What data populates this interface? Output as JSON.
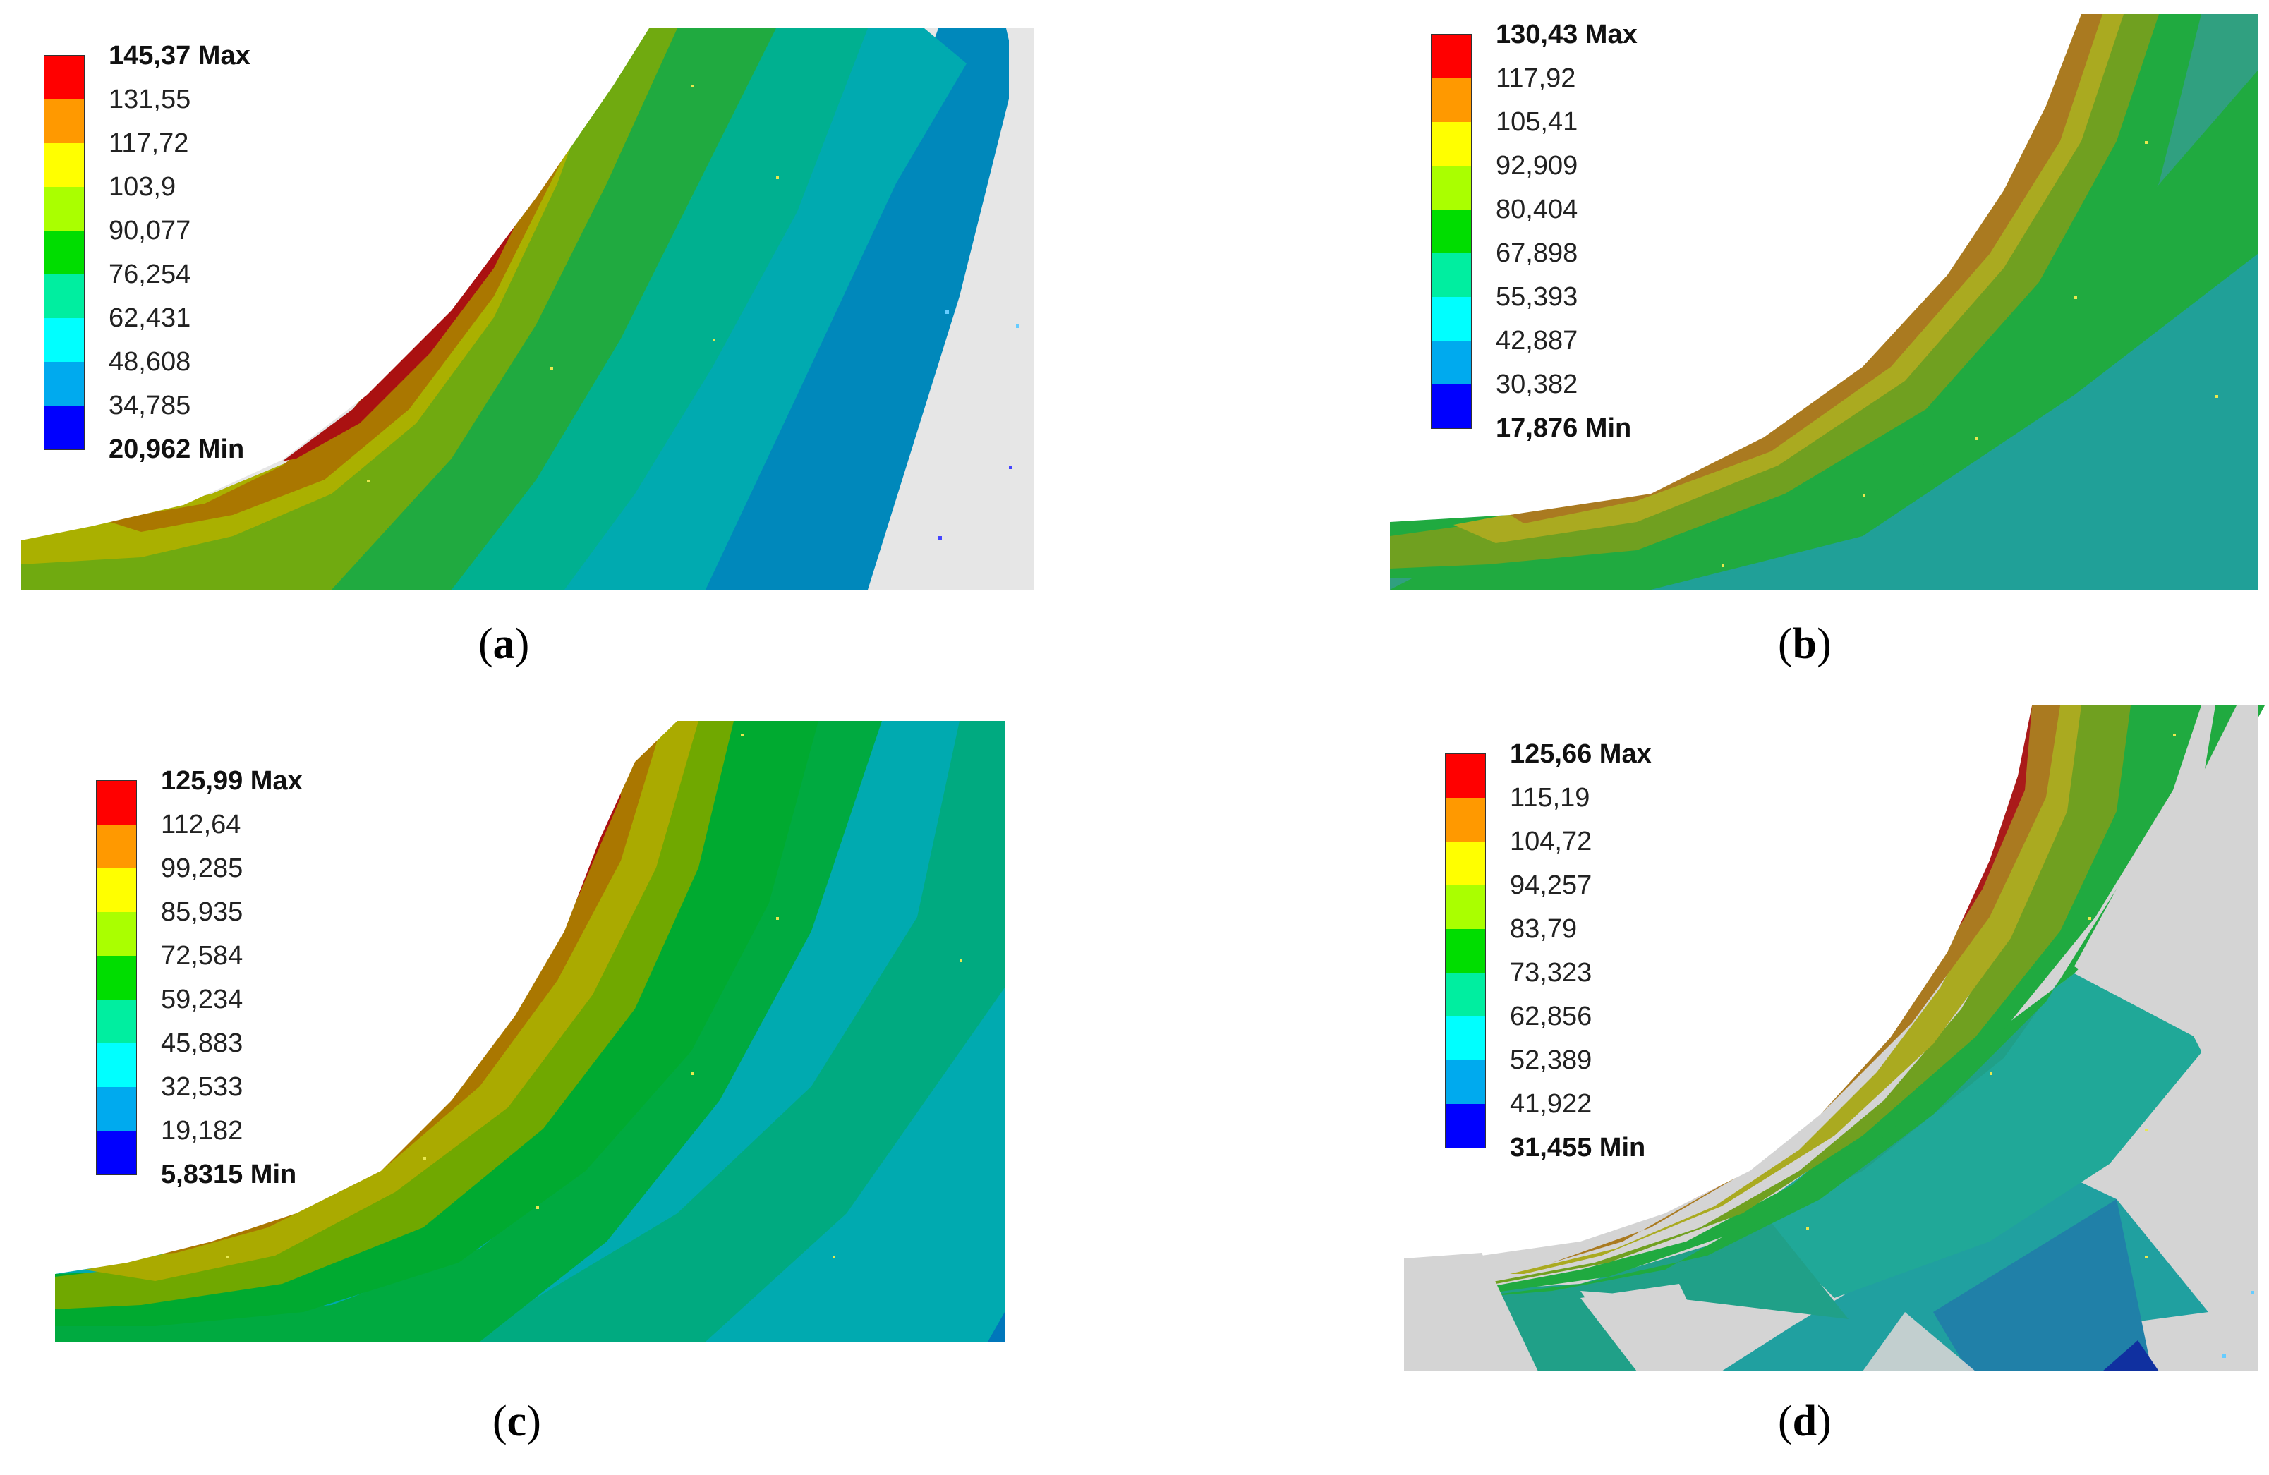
{
  "colors": [
    "#ff0000",
    "#ff9900",
    "#ffff00",
    "#aaff00",
    "#00dd00",
    "#00eea0",
    "#00ffff",
    "#00aaee",
    "#0000ff"
  ],
  "panels": [
    {
      "id": "a",
      "caption": "a",
      "legend": {
        "max": "145,37 Max",
        "levels": [
          "131,55",
          "117,72",
          "103,9",
          "90,077",
          "76,254",
          "62,431",
          "48,608",
          "34,785"
        ],
        "min": "20,962 Min"
      }
    },
    {
      "id": "b",
      "caption": "b",
      "legend": {
        "max": "130,43 Max",
        "levels": [
          "117,92",
          "105,41",
          "92,909",
          "80,404",
          "67,898",
          "55,393",
          "42,887",
          "30,382"
        ],
        "min": "17,876 Min"
      }
    },
    {
      "id": "c",
      "caption": "c",
      "legend": {
        "max": "125,99 Max",
        "levels": [
          "112,64",
          "99,285",
          "85,935",
          "72,584",
          "59,234",
          "45,883",
          "32,533",
          "19,182"
        ],
        "min": "5,8315 Min"
      }
    },
    {
      "id": "d",
      "caption": "d",
      "legend": {
        "max": "125,66 Max",
        "levels": [
          "115,19",
          "104,72",
          "94,257",
          "83,79",
          "73,323",
          "62,856",
          "52,389",
          "41,922"
        ],
        "min": "31,455 Min"
      }
    }
  ]
}
